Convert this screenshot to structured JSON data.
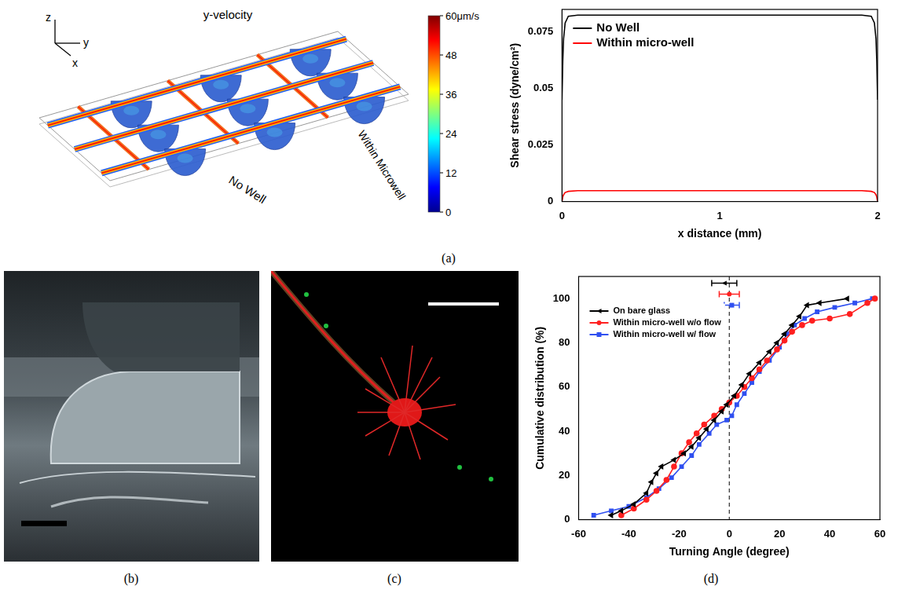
{
  "panel_labels": [
    "(a)",
    "(b)",
    "(c)",
    "(d)"
  ],
  "simulation": {
    "title": "y-velocity",
    "axis_names": [
      "z",
      "y",
      "x"
    ],
    "labels": [
      "No Well",
      "Within Microwell"
    ],
    "colorbar": {
      "range": [
        0,
        60
      ],
      "ticks": [
        0,
        12,
        24,
        36,
        48,
        {
          "value": 60,
          "label": "60μm/s"
        }
      ]
    }
  },
  "chart_data": [
    {
      "type": "line",
      "xlabel": "x distance (mm)",
      "ylabel": "Shear stress (dyne/cm²)",
      "xlim": [
        0,
        2
      ],
      "xticks": [
        0,
        1,
        2
      ],
      "ylim": [
        0,
        0.085
      ],
      "yticks": [
        0,
        0.025,
        0.05,
        0.075
      ],
      "grid": false,
      "legend": "upper left",
      "x": [
        0,
        0.005,
        0.01,
        0.02,
        0.04,
        0.1,
        0.5,
        1,
        1.5,
        1.9,
        1.96,
        1.98,
        1.99,
        1.995,
        2
      ],
      "series": [
        {
          "name": "No Well",
          "color": "#000000",
          "values": [
            0.045,
            0.062,
            0.072,
            0.079,
            0.082,
            0.0825,
            0.0825,
            0.0825,
            0.0825,
            0.0825,
            0.082,
            0.079,
            0.072,
            0.062,
            0.045
          ]
        },
        {
          "name": "Within micro-well",
          "color": "#ff0000",
          "values": [
            0,
            0.002,
            0.003,
            0.004,
            0.0045,
            0.0048,
            0.0048,
            0.0048,
            0.0048,
            0.0048,
            0.0045,
            0.004,
            0.003,
            0.002,
            0
          ]
        }
      ]
    },
    {
      "type": "line",
      "xlabel": "Turning Angle (degree)",
      "ylabel": "Cumulative distribution (%)",
      "xlim": [
        -60,
        60
      ],
      "xticks": [
        -60,
        -40,
        -20,
        0,
        20,
        40,
        60
      ],
      "ylim": [
        0,
        110
      ],
      "yticks": [
        0,
        20,
        40,
        60,
        80,
        100
      ],
      "grid": false,
      "legend": "upper left",
      "reference_x": 0,
      "series": [
        {
          "name": "On bare glass",
          "color": "#000000",
          "marker": "triangle-left",
          "x": [
            -47,
            -43,
            -38,
            -33,
            -31,
            -29,
            -27,
            -22,
            -18,
            -15,
            -12,
            -9,
            -6,
            -3,
            -1,
            2,
            5,
            8,
            12,
            16,
            19,
            22,
            25,
            28,
            31,
            36,
            47
          ],
          "values": [
            2,
            4,
            7,
            12,
            17,
            21,
            24,
            27,
            30,
            33,
            37,
            41,
            45,
            49,
            52,
            56,
            61,
            66,
            71,
            76,
            80,
            84,
            88,
            92,
            97,
            98,
            100
          ],
          "error_bar": {
            "x": -2,
            "y": 107,
            "xerr": 5
          }
        },
        {
          "name": "Within micro-well w/o flow",
          "color": "#ff2020",
          "marker": "circle",
          "x": [
            -43,
            -38,
            -33,
            -29,
            -25,
            -22,
            -19,
            -16,
            -13,
            -10,
            -6,
            -3,
            0,
            3,
            6,
            9,
            12,
            15,
            19,
            22,
            25,
            29,
            33,
            40,
            48,
            55,
            58
          ],
          "values": [
            2,
            5,
            9,
            13,
            18,
            24,
            30,
            35,
            39,
            43,
            47,
            50,
            53,
            56,
            60,
            64,
            68,
            72,
            77,
            81,
            85,
            88,
            90,
            91,
            93,
            98,
            100
          ],
          "error_bar": {
            "x": 0,
            "y": 102,
            "xerr": 4
          }
        },
        {
          "name": "Within micro-well w/ flow",
          "color": "#3050f0",
          "marker": "square",
          "x": [
            -54,
            -47,
            -40,
            -33,
            -28,
            -23,
            -19,
            -15,
            -12,
            -8,
            -5,
            -1,
            1,
            3,
            6,
            9,
            12,
            16,
            20,
            23,
            26,
            30,
            35,
            42,
            50,
            57
          ],
          "values": [
            2,
            4,
            6,
            10,
            14,
            19,
            24,
            29,
            34,
            39,
            43,
            45,
            47,
            52,
            57,
            62,
            67,
            72,
            78,
            84,
            88,
            91,
            94,
            96,
            98,
            100
          ],
          "error_bar": {
            "x": 1,
            "y": 97,
            "xerr": 3
          }
        }
      ]
    }
  ]
}
